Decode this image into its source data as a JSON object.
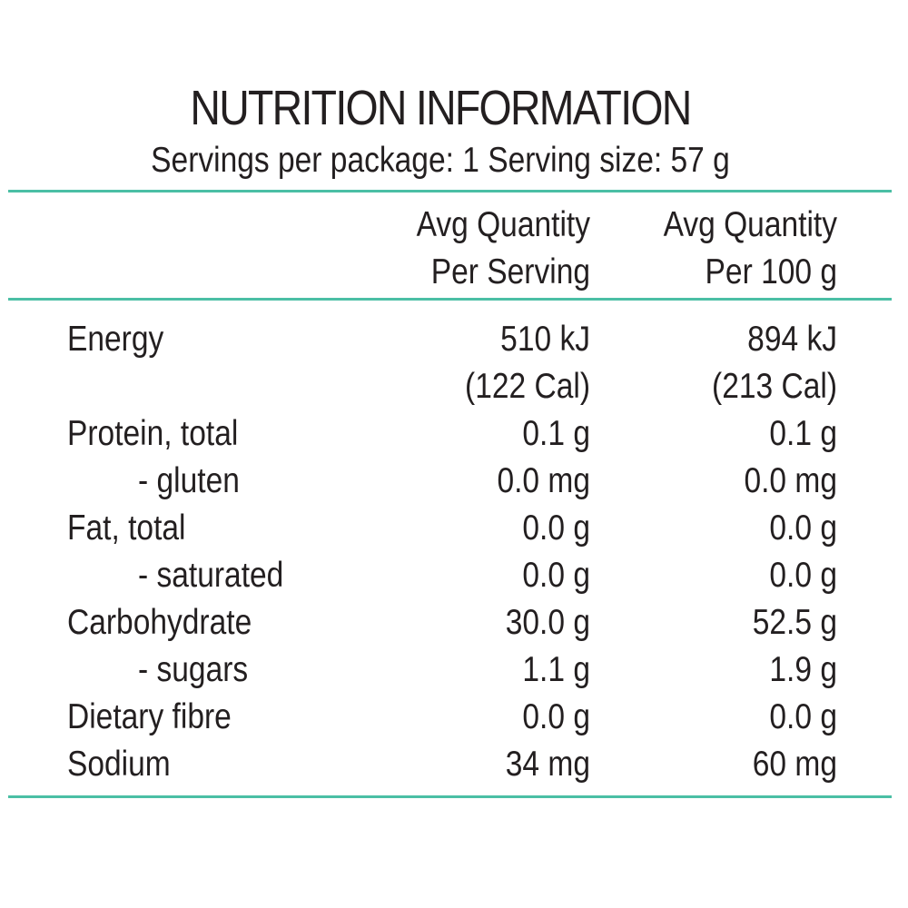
{
  "title": "NUTRITION INFORMATION",
  "subtitle": "Servings per package: 1 Serving size: 57 g",
  "columns": {
    "per_serving": {
      "line1": "Avg Quantity",
      "line2": "Per Serving"
    },
    "per_100g": {
      "line1": "Avg Quantity",
      "line2": "Per 100 g"
    }
  },
  "rows": [
    {
      "label": "Energy",
      "per_serving": "510 kJ",
      "per_serving_cal": "(122 Cal)",
      "per_100g": "894 kJ",
      "per_100g_cal": "(213 Cal)"
    },
    {
      "label": "Protein, total",
      "per_serving": "0.1 g",
      "per_100g": "0.1 g"
    },
    {
      "label": "- gluten",
      "per_serving": "0.0 mg",
      "per_100g": "0.0 mg"
    },
    {
      "label": "Fat, total",
      "per_serving": "0.0 g",
      "per_100g": "0.0 g"
    },
    {
      "label": "- saturated",
      "per_serving": "0.0 g",
      "per_100g": "0.0 g"
    },
    {
      "label": "Carbohydrate",
      "per_serving": "30.0 g",
      "per_100g": "52.5 g"
    },
    {
      "label": "- sugars",
      "per_serving": "1.1 g",
      "per_100g": "1.9 g"
    },
    {
      "label": "Dietary fibre",
      "per_serving": "0.0 g",
      "per_100g": "0.0 g"
    },
    {
      "label": "Sodium",
      "per_serving": "34 mg",
      "per_100g": "60 mg"
    }
  ],
  "colors": {
    "rule": "#4bbfa5",
    "text": "#231f20"
  }
}
